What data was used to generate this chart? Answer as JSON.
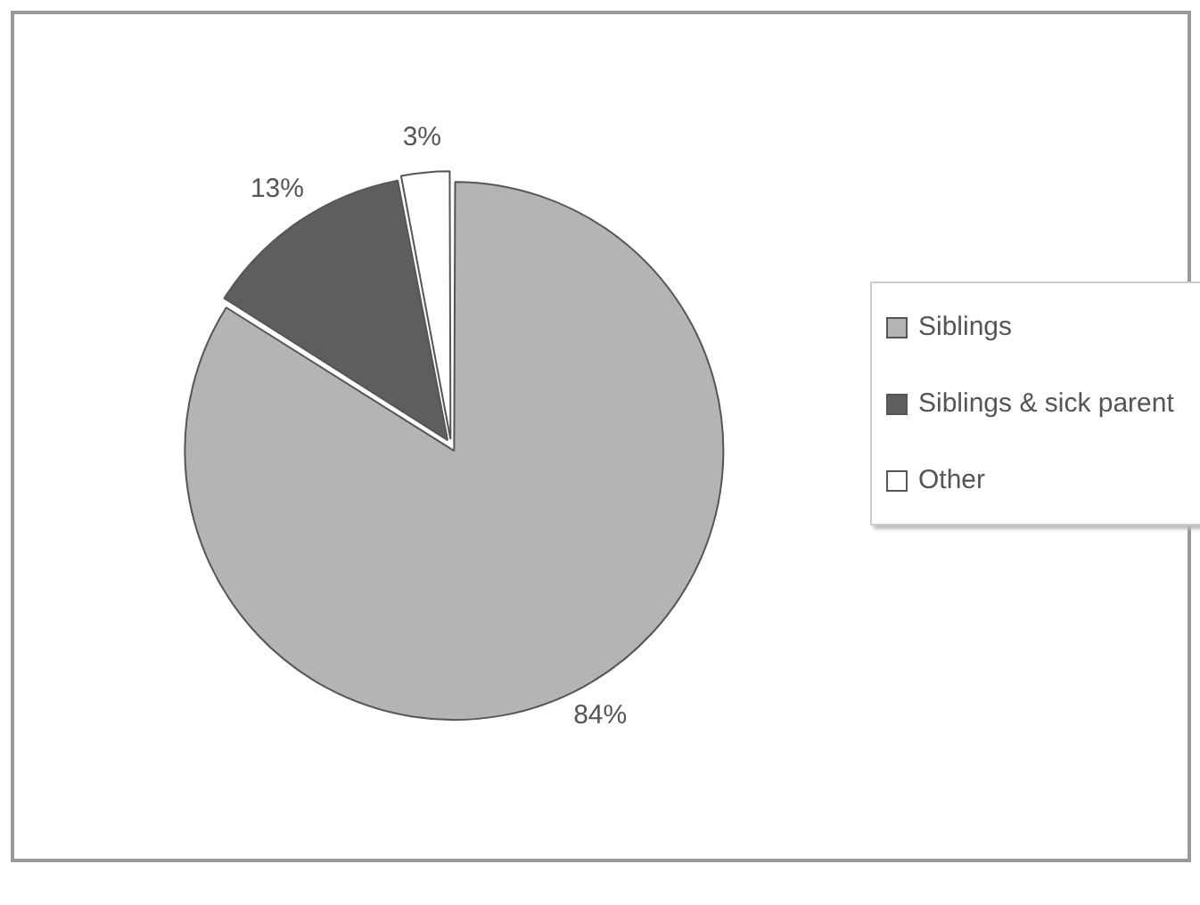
{
  "chart_data": {
    "type": "pie",
    "categories": [
      "Siblings",
      "Siblings & sick parent",
      "Other"
    ],
    "values": [
      84,
      13,
      3
    ],
    "colors": [
      "#b4b4b4",
      "#5e5e5e",
      "#ffffff"
    ],
    "value_labels": [
      "84%",
      "13%",
      "3%"
    ],
    "legend": "right"
  }
}
